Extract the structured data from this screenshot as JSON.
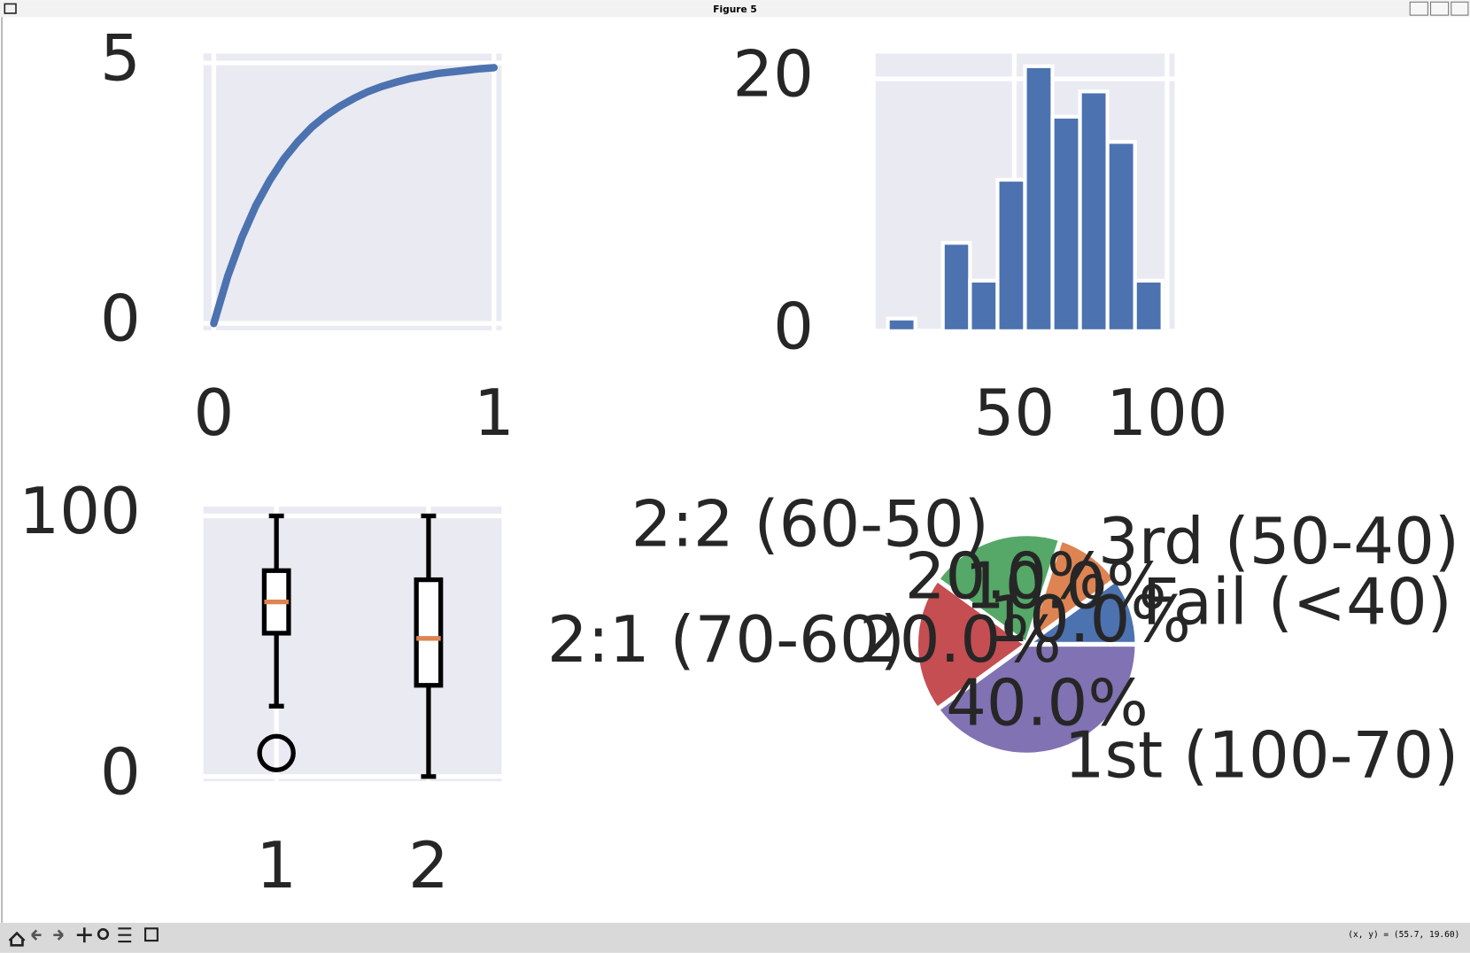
{
  "window": {
    "title": "Figure 5"
  },
  "status": "(x, y) = (55.7, 19.60)",
  "chart_data": [
    {
      "type": "line",
      "x": [
        0,
        0.05,
        0.1,
        0.15,
        0.2,
        0.25,
        0.3,
        0.35,
        0.4,
        0.45,
        0.5,
        0.55,
        0.6,
        0.65,
        0.7,
        0.75,
        0.8,
        0.85,
        0.9,
        0.95,
        1
      ],
      "values": [
        0,
        0.91,
        1.65,
        2.26,
        2.75,
        3.16,
        3.49,
        3.77,
        3.99,
        4.17,
        4.32,
        4.45,
        4.55,
        4.63,
        4.7,
        4.75,
        4.8,
        4.83,
        4.86,
        4.89,
        4.91
      ],
      "color": "#4c72b0",
      "xlim": [
        -0.037,
        1.027
      ],
      "ylim": [
        -0.13,
        5.18
      ],
      "xticks": [
        0,
        1
      ],
      "yticks": [
        0,
        5
      ],
      "grid": true
    },
    {
      "type": "histogram",
      "bins": [
        8.6,
        17.6,
        26.6,
        35.5,
        44.5,
        53.5,
        62.5,
        71.5,
        80.5,
        89.5,
        98.5
      ],
      "values": [
        1,
        0,
        7,
        4,
        12,
        21,
        17,
        19,
        15,
        4
      ],
      "color": "#4c72b0",
      "xlim": [
        4.6,
        102.5
      ],
      "ylim": [
        0,
        22
      ],
      "xticks": [
        50,
        100
      ],
      "yticks": [
        0,
        20
      ],
      "grid": true
    },
    {
      "type": "box",
      "boxes": [
        {
          "whislo": 27,
          "q1": 55,
          "med": 67,
          "q3": 79,
          "whishi": 100,
          "fliers": [
            9
          ]
        },
        {
          "whislo": 0,
          "q1": 35,
          "med": 53,
          "q3": 75.5,
          "whishi": 100,
          "fliers": []
        }
      ],
      "color": "#000000",
      "median_color": "#dd8452",
      "xlim": [
        0.52,
        2.48
      ],
      "ylim": [
        -1.8,
        103.6
      ],
      "xticks": [
        1,
        2
      ],
      "yticks": [
        0,
        100
      ],
      "grid": true
    },
    {
      "type": "pie",
      "categories": [
        "Fail (<40)",
        "3rd (50-40)",
        "2:2 (60-50)",
        "2:1 (70-60)",
        "1st (100-70)"
      ],
      "values": [
        10,
        10,
        20,
        20,
        40
      ],
      "value_labels": [
        "10.0%",
        "10.0%",
        "20.0%",
        "20.0%",
        "40.0%"
      ],
      "colors": [
        "#4c72b0",
        "#dd8452",
        "#55a868",
        "#c44e52",
        "#8172b3"
      ]
    }
  ]
}
